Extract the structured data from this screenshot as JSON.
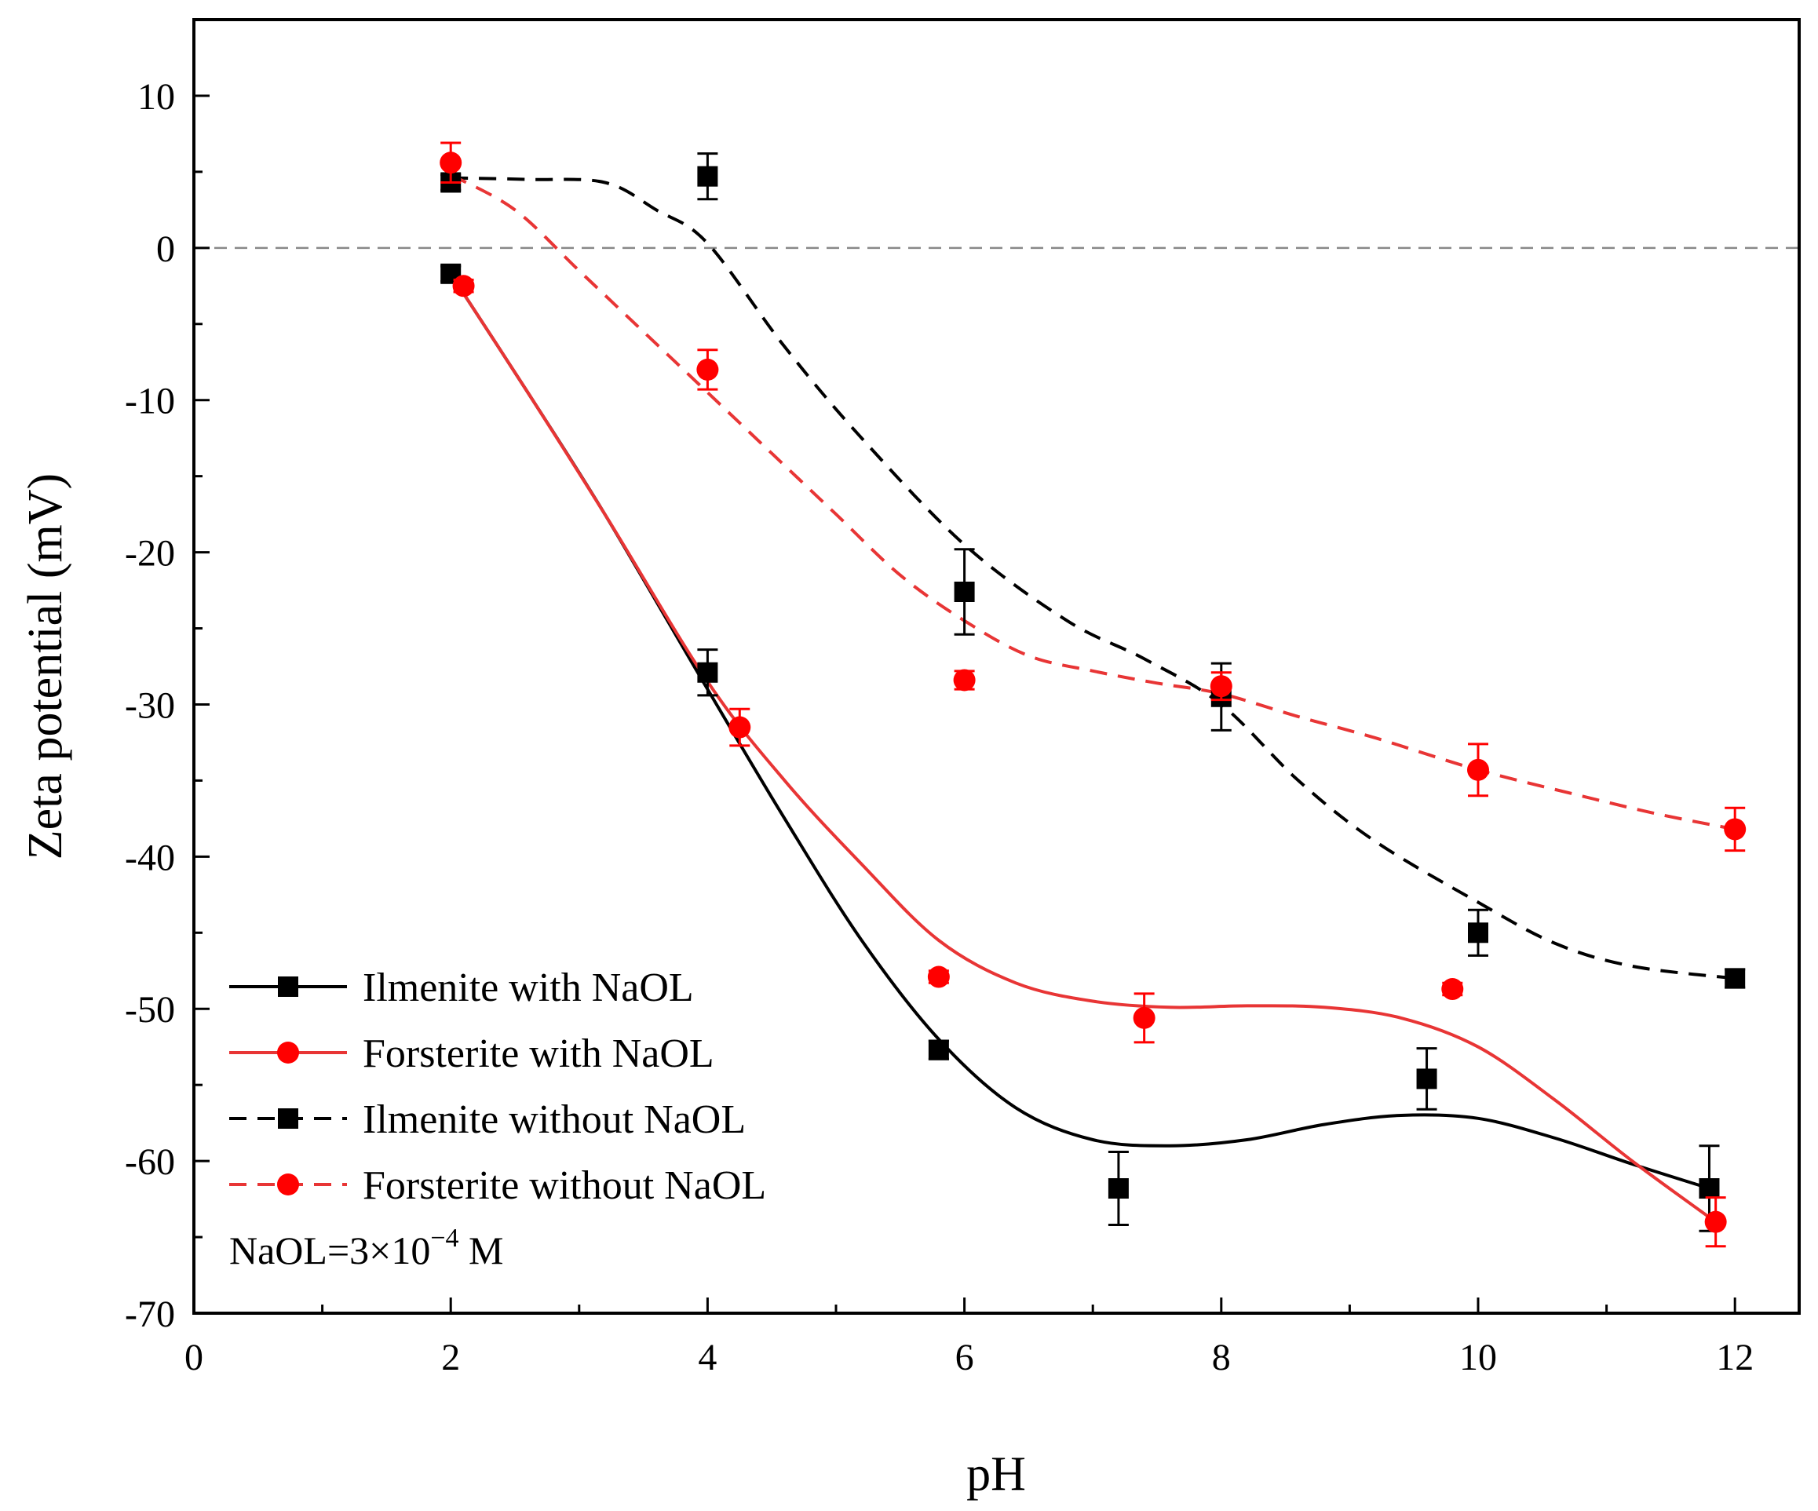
{
  "chart_data": {
    "type": "line",
    "title": "",
    "xlabel": "pH",
    "ylabel": "Zeta potential (mV)",
    "xlim": [
      0,
      12.5
    ],
    "ylim": [
      -70,
      15
    ],
    "xticks": [
      0,
      2,
      4,
      6,
      8,
      10,
      12
    ],
    "yticks": [
      10,
      0,
      -10,
      -20,
      -30,
      -40,
      -50,
      -60,
      -70
    ],
    "reference_line_y": 0,
    "legend_position": "bottom-left",
    "annotation": {
      "prefix": "NaOL=3×10",
      "exponent": "−4",
      "suffix": " M"
    },
    "series": [
      {
        "name": "Ilmenite with NaOL",
        "color": "#000000",
        "marker": "square",
        "line_style": "solid",
        "x": [
          2.0,
          4.0,
          5.8,
          7.2,
          9.6,
          11.8
        ],
        "y": [
          -1.7,
          -27.9,
          -52.7,
          -61.8,
          -54.6,
          -61.8
        ],
        "err": [
          0.5,
          1.5,
          0.6,
          2.4,
          2.0,
          2.8
        ],
        "fit": [
          [
            2.0,
            -1.7
          ],
          [
            2.6,
            -9.5
          ],
          [
            3.2,
            -17.5
          ],
          [
            4.0,
            -29.0
          ],
          [
            4.6,
            -37.5
          ],
          [
            5.2,
            -45.5
          ],
          [
            5.8,
            -52.0
          ],
          [
            6.4,
            -56.5
          ],
          [
            7.0,
            -58.6
          ],
          [
            7.6,
            -59.0
          ],
          [
            8.2,
            -58.6
          ],
          [
            8.8,
            -57.6
          ],
          [
            9.4,
            -57.0
          ],
          [
            10.0,
            -57.2
          ],
          [
            10.6,
            -58.5
          ],
          [
            11.2,
            -60.2
          ],
          [
            11.8,
            -61.8
          ]
        ]
      },
      {
        "name": "Forsterite with NaOL",
        "color": "#ff0000",
        "marker": "circle",
        "line_style": "solid",
        "x": [
          2.1,
          4.25,
          5.8,
          7.4,
          9.8,
          11.85
        ],
        "y": [
          -2.5,
          -31.5,
          -47.9,
          -50.6,
          -48.7,
          -64.0
        ],
        "err": [
          0.4,
          1.2,
          0.4,
          1.6,
          0.4,
          1.6
        ],
        "fit": [
          [
            2.0,
            -1.7
          ],
          [
            2.6,
            -9.5
          ],
          [
            3.2,
            -17.5
          ],
          [
            4.0,
            -28.5
          ],
          [
            4.6,
            -35.0
          ],
          [
            5.2,
            -40.5
          ],
          [
            5.8,
            -45.5
          ],
          [
            6.4,
            -48.3
          ],
          [
            7.0,
            -49.5
          ],
          [
            7.6,
            -49.9
          ],
          [
            8.2,
            -49.8
          ],
          [
            8.8,
            -49.9
          ],
          [
            9.4,
            -50.6
          ],
          [
            10.0,
            -52.5
          ],
          [
            10.6,
            -56.0
          ],
          [
            11.2,
            -60.0
          ],
          [
            11.85,
            -64.0
          ]
        ]
      },
      {
        "name": "Ilmenite without NaOL",
        "color": "#000000",
        "marker": "square",
        "line_style": "dashed",
        "x": [
          2.0,
          4.0,
          6.0,
          8.0,
          10.0,
          12.0
        ],
        "y": [
          4.3,
          4.7,
          -22.6,
          -29.5,
          -45.0,
          -48.0
        ],
        "err": [
          0.5,
          1.5,
          2.8,
          2.2,
          1.5,
          0.6
        ],
        "fit": [
          [
            2.0,
            4.6
          ],
          [
            2.6,
            4.5
          ],
          [
            3.2,
            4.3
          ],
          [
            3.6,
            2.5
          ],
          [
            4.0,
            0.3
          ],
          [
            4.6,
            -6.5
          ],
          [
            5.2,
            -12.5
          ],
          [
            6.0,
            -19.5
          ],
          [
            6.8,
            -24.5
          ],
          [
            7.4,
            -27.0
          ],
          [
            8.0,
            -30.0
          ],
          [
            8.6,
            -35.0
          ],
          [
            9.2,
            -39.0
          ],
          [
            10.0,
            -43.0
          ],
          [
            10.6,
            -45.7
          ],
          [
            11.2,
            -47.2
          ],
          [
            12.0,
            -48.0
          ]
        ]
      },
      {
        "name": "Forsterite without NaOL",
        "color": "#ff0000",
        "marker": "circle",
        "line_style": "dashed",
        "x": [
          2.0,
          4.0,
          6.0,
          8.0,
          10.0,
          12.0
        ],
        "y": [
          5.6,
          -8.0,
          -28.4,
          -28.8,
          -34.3,
          -38.2
        ],
        "err": [
          1.3,
          1.3,
          0.6,
          0.9,
          1.7,
          1.4
        ],
        "fit": [
          [
            2.0,
            4.8
          ],
          [
            2.5,
            2.5
          ],
          [
            3.0,
            -1.5
          ],
          [
            3.5,
            -5.5
          ],
          [
            4.0,
            -9.5
          ],
          [
            4.5,
            -13.5
          ],
          [
            5.0,
            -17.5
          ],
          [
            5.5,
            -21.5
          ],
          [
            6.0,
            -24.5
          ],
          [
            6.5,
            -26.8
          ],
          [
            7.0,
            -27.8
          ],
          [
            7.5,
            -28.6
          ],
          [
            8.0,
            -29.3
          ],
          [
            8.6,
            -30.8
          ],
          [
            9.2,
            -32.2
          ],
          [
            10.0,
            -34.3
          ],
          [
            10.8,
            -36.0
          ],
          [
            11.4,
            -37.2
          ],
          [
            12.0,
            -38.2
          ]
        ]
      }
    ]
  }
}
